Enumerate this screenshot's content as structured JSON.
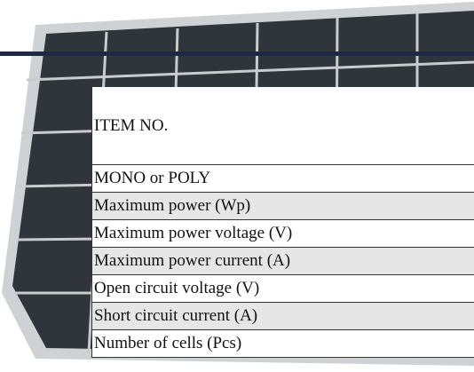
{
  "table": {
    "rows": [
      "ITEM NO.",
      "MONO or POLY",
      "Maximum power (Wp)",
      "Maximum power voltage (V)",
      "Maximum power current (A)",
      "Open circuit voltage (V)",
      "Short circuit current (A)",
      "Number of cells (Pcs)"
    ]
  }
}
